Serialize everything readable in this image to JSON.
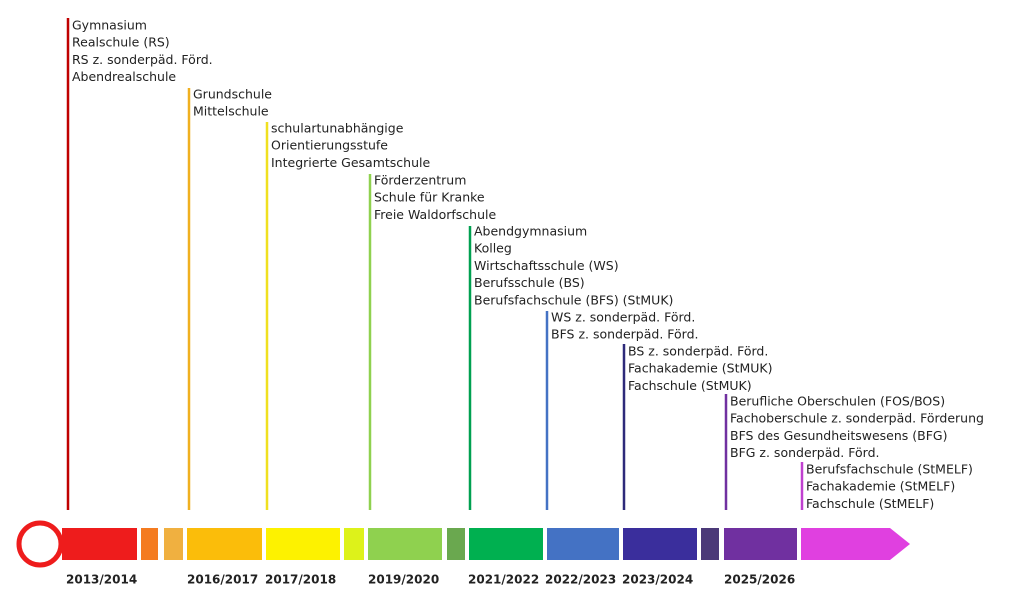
{
  "milestones": [
    {
      "year": "2013/2014",
      "schools": [
        "Gymnasium",
        "Realschule (RS)",
        "RS z. sonderpäd. Förd.",
        "Abendrealschule"
      ]
    },
    {
      "year": "2016/2017",
      "schools": [
        "Grundschule",
        "Mittelschule"
      ]
    },
    {
      "year": "2017/2018",
      "schools": [
        "schulartunabhängige",
        "Orientierungsstufe",
        "Integrierte Gesamtschule"
      ]
    },
    {
      "year": "2019/2020",
      "schools": [
        "Förderzentrum",
        "Schule für Kranke",
        "Freie Waldorfschule"
      ]
    },
    {
      "year": "2021/2022",
      "schools": [
        "Abendgymnasium",
        "Kolleg",
        "Wirtschaftsschule (WS)",
        "Berufsschule (BS)",
        "Berufsfachschule (BFS) (StMUK)"
      ]
    },
    {
      "year": "2022/2023",
      "schools": [
        "WS z. sonderpäd. Förd.",
        "BFS z. sonderpäd. Förd."
      ]
    },
    {
      "year": "2023/2024",
      "schools": [
        "BS z. sonderpäd. Förd.",
        "Fachakademie (StMUK)",
        "Fachschule (StMUK)"
      ]
    },
    {
      "year": "2025/2026",
      "schools": [
        "Berufliche Oberschulen (FOS/BOS)",
        "Fachoberschule z. sonderpäd. Förderung",
        "BFS des Gesundheitswesens (BFG)",
        "BFG z. sonderpäd. Förd."
      ]
    },
    {
      "schools": [
        "Berufsfachschule (StMELF)",
        "Fachakademie (StMELF)",
        "Fachschule (StMELF)"
      ]
    }
  ]
}
